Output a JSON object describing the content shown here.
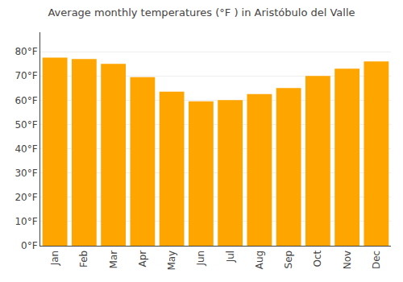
{
  "chart_data": {
    "type": "bar",
    "title": "Average monthly temperatures (°F ) in Aristóbulo del Valle",
    "categories": [
      "Jan",
      "Feb",
      "Mar",
      "Apr",
      "May",
      "Jun",
      "Jul",
      "Aug",
      "Sep",
      "Oct",
      "Nov",
      "Dec"
    ],
    "values": [
      77.5,
      77.0,
      75.0,
      69.5,
      63.5,
      59.5,
      60.0,
      62.5,
      65.0,
      70.0,
      73.0,
      76.0
    ],
    "color": "#FFA500",
    "ylim": [
      0,
      88
    ],
    "yticks": [
      {
        "value": 0,
        "label": "0°F"
      },
      {
        "value": 10,
        "label": "10°F"
      },
      {
        "value": 20,
        "label": "20°F"
      },
      {
        "value": 30,
        "label": "30°F"
      },
      {
        "value": 40,
        "label": "40°F"
      },
      {
        "value": 50,
        "label": "50°F"
      },
      {
        "value": 60,
        "label": "60°F"
      },
      {
        "value": 70,
        "label": "70°F"
      },
      {
        "value": 80,
        "label": "80°F"
      }
    ],
    "grid": true
  }
}
